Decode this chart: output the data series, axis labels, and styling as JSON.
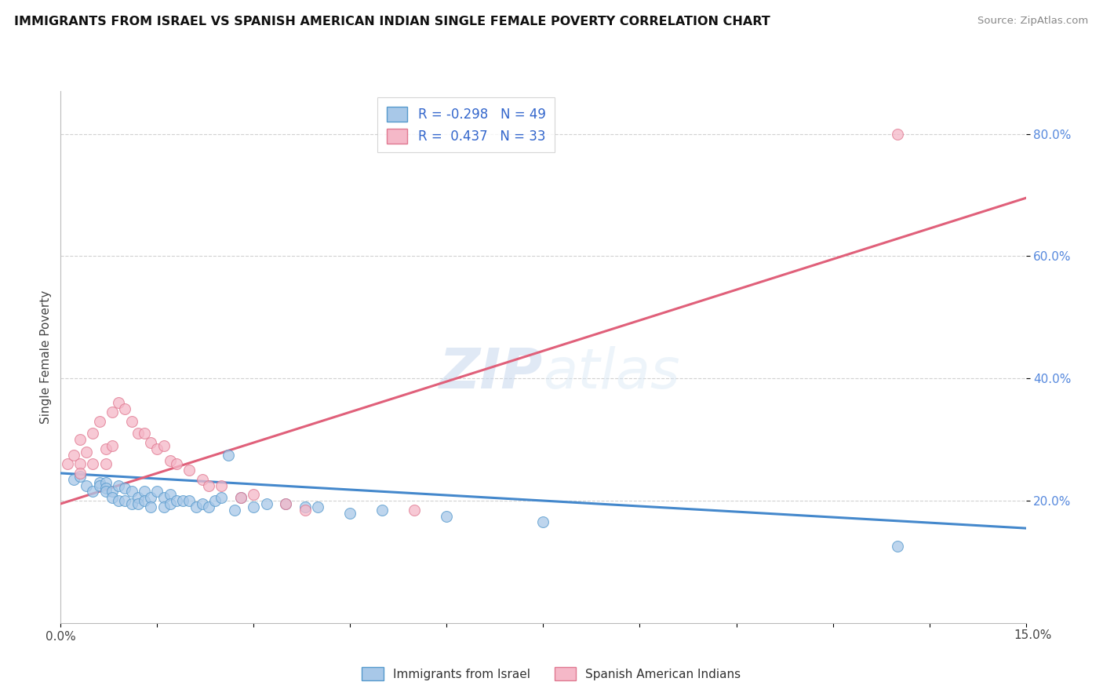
{
  "title": "IMMIGRANTS FROM ISRAEL VS SPANISH AMERICAN INDIAN SINGLE FEMALE POVERTY CORRELATION CHART",
  "source": "Source: ZipAtlas.com",
  "ylabel": "Single Female Poverty",
  "legend_blue_R": "-0.298",
  "legend_blue_N": "49",
  "legend_pink_R": "0.437",
  "legend_pink_N": "33",
  "xmin": 0.0,
  "xmax": 0.15,
  "ymin": 0.0,
  "ymax": 0.87,
  "blue_fill": "#a8c8e8",
  "blue_edge": "#5599cc",
  "pink_fill": "#f5b8c8",
  "pink_edge": "#e07890",
  "blue_line": "#4488cc",
  "pink_line": "#e0607a",
  "ytick_vals": [
    0.2,
    0.4,
    0.6,
    0.8
  ],
  "ytick_labels": [
    "20.0%",
    "40.0%",
    "60.0%",
    "80.0%"
  ],
  "blue_reg": [
    0.0,
    0.245,
    0.15,
    0.155
  ],
  "blue_reg_ext": [
    0.15,
    0.155,
    0.2,
    0.1
  ],
  "pink_reg": [
    0.0,
    0.195,
    0.15,
    0.695
  ],
  "blue_x": [
    0.002,
    0.003,
    0.004,
    0.005,
    0.006,
    0.006,
    0.007,
    0.007,
    0.007,
    0.008,
    0.008,
    0.009,
    0.009,
    0.01,
    0.01,
    0.011,
    0.011,
    0.012,
    0.012,
    0.013,
    0.013,
    0.014,
    0.014,
    0.015,
    0.016,
    0.016,
    0.017,
    0.017,
    0.018,
    0.019,
    0.02,
    0.021,
    0.022,
    0.023,
    0.024,
    0.025,
    0.026,
    0.027,
    0.028,
    0.03,
    0.032,
    0.035,
    0.038,
    0.04,
    0.045,
    0.05,
    0.06,
    0.075,
    0.13
  ],
  "blue_y": [
    0.235,
    0.24,
    0.225,
    0.215,
    0.23,
    0.225,
    0.23,
    0.22,
    0.215,
    0.215,
    0.205,
    0.225,
    0.2,
    0.22,
    0.2,
    0.215,
    0.195,
    0.205,
    0.195,
    0.215,
    0.2,
    0.205,
    0.19,
    0.215,
    0.205,
    0.19,
    0.21,
    0.195,
    0.2,
    0.2,
    0.2,
    0.19,
    0.195,
    0.19,
    0.2,
    0.205,
    0.275,
    0.185,
    0.205,
    0.19,
    0.195,
    0.195,
    0.19,
    0.19,
    0.18,
    0.185,
    0.175,
    0.165,
    0.125
  ],
  "pink_x": [
    0.001,
    0.002,
    0.003,
    0.003,
    0.003,
    0.004,
    0.005,
    0.005,
    0.006,
    0.007,
    0.007,
    0.008,
    0.008,
    0.009,
    0.01,
    0.011,
    0.012,
    0.013,
    0.014,
    0.015,
    0.016,
    0.017,
    0.018,
    0.02,
    0.022,
    0.023,
    0.025,
    0.028,
    0.03,
    0.035,
    0.038,
    0.055,
    0.13
  ],
  "pink_y": [
    0.26,
    0.275,
    0.3,
    0.26,
    0.245,
    0.28,
    0.31,
    0.26,
    0.33,
    0.285,
    0.26,
    0.345,
    0.29,
    0.36,
    0.35,
    0.33,
    0.31,
    0.31,
    0.295,
    0.285,
    0.29,
    0.265,
    0.26,
    0.25,
    0.235,
    0.225,
    0.225,
    0.205,
    0.21,
    0.195,
    0.185,
    0.185,
    0.8
  ],
  "watermark_zip": "ZIP",
  "watermark_atlas": "atlas",
  "bg_color": "#ffffff",
  "grid_color": "#cccccc",
  "bottom_labels": [
    "Immigrants from Israel",
    "Spanish American Indians"
  ]
}
